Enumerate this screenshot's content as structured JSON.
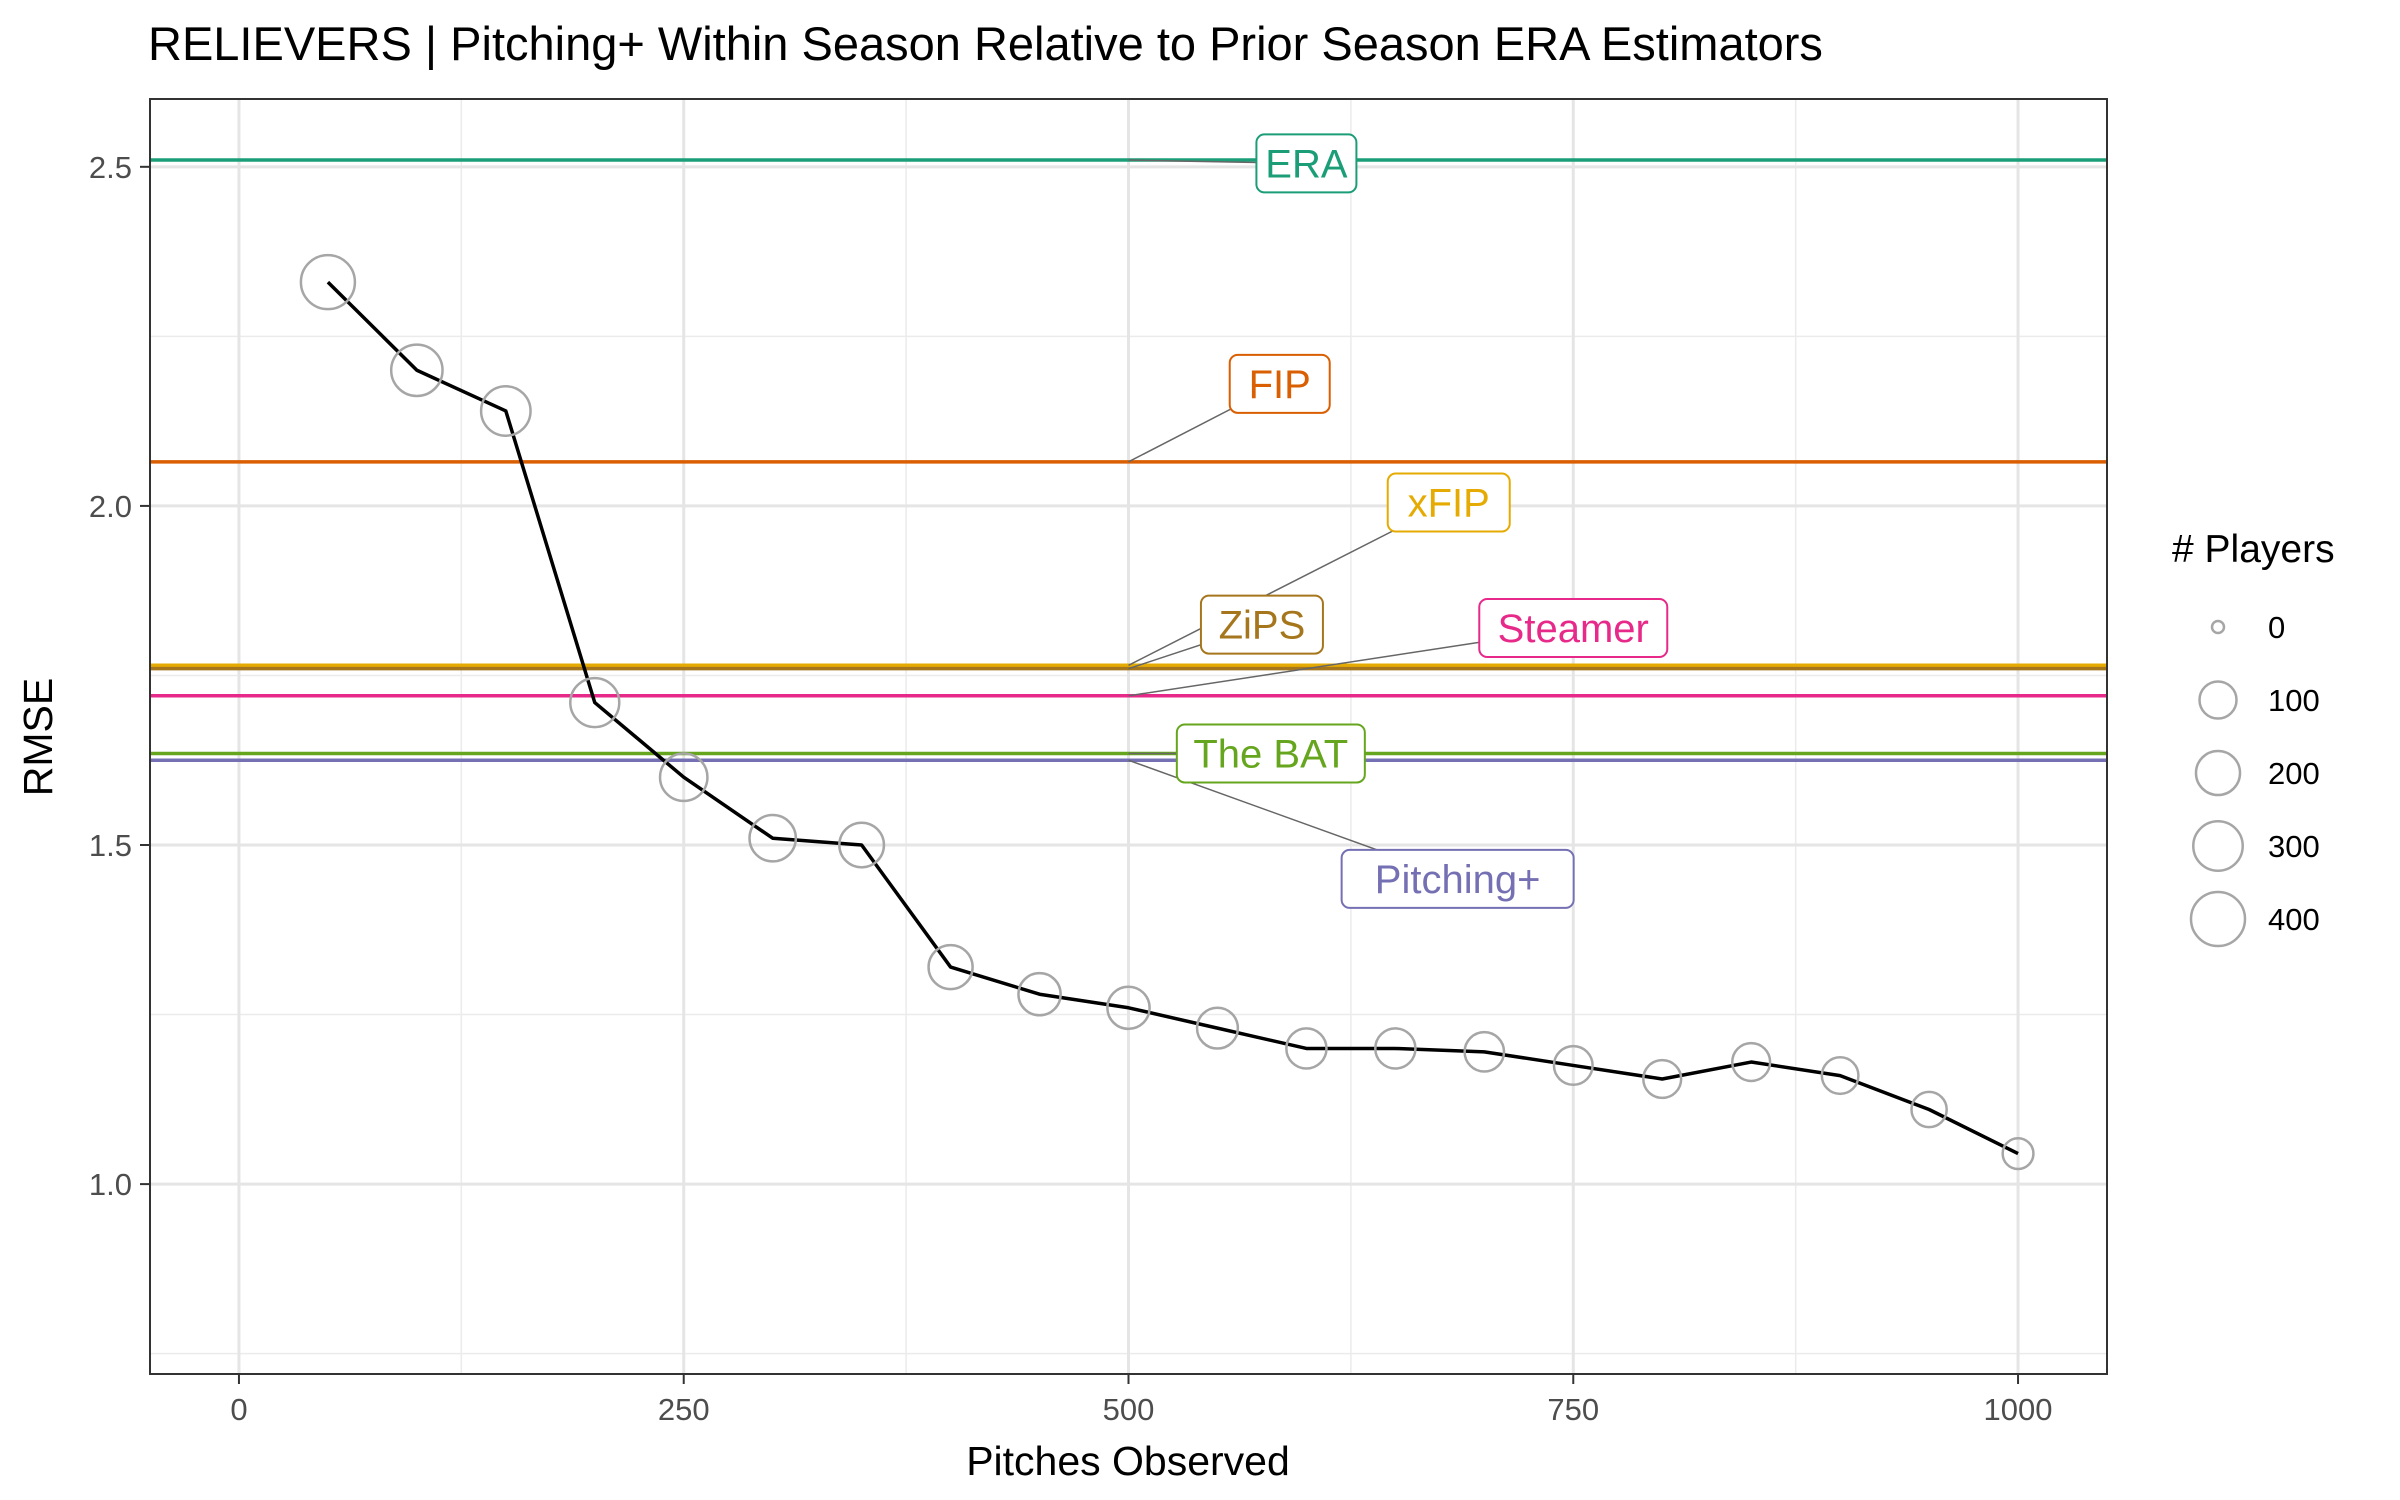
{
  "chart_data": {
    "type": "line",
    "title": "RELIEVERS | Pitching+ Within Season Relative to Prior Season ERA Estimators",
    "xlabel": "Pitches Observed",
    "ylabel": "RMSE",
    "xlim": [
      -50,
      1050
    ],
    "ylim": [
      0.72,
      2.6
    ],
    "x_ticks": [
      0,
      250,
      500,
      750,
      1000
    ],
    "x_tick_labels": [
      "0",
      "250",
      "500",
      "750",
      "1000"
    ],
    "y_ticks": [
      1.0,
      1.5,
      2.0,
      2.5
    ],
    "y_tick_labels": [
      "1.0",
      "1.5",
      "2.0",
      "2.5"
    ],
    "grid": true,
    "series": [
      {
        "x": [
          50,
          100,
          150,
          200,
          250,
          300,
          350,
          400,
          450,
          500,
          550,
          600,
          650,
          700,
          750,
          800,
          850,
          900,
          950,
          1000
        ],
        "y": [
          2.33,
          2.2,
          2.14,
          1.71,
          1.6,
          1.51,
          1.5,
          1.32,
          1.28,
          1.26,
          1.23,
          1.2,
          1.2,
          1.195,
          1.175,
          1.155,
          1.18,
          1.16,
          1.11,
          1.045
        ],
        "players": [
          400,
          340,
          300,
          290,
          260,
          240,
          210,
          200,
          170,
          170,
          150,
          140,
          140,
          130,
          120,
          110,
          110,
          95,
          80,
          40
        ],
        "color": "#000000"
      }
    ],
    "reference_lines": [
      {
        "name": "ERA",
        "y": 2.51,
        "color": "#1b9e77",
        "label_x": 600,
        "label_y": 2.505
      },
      {
        "name": "FIP",
        "y": 2.065,
        "color": "#d95f02",
        "label_x": 585,
        "label_y": 2.18
      },
      {
        "name": "xFIP",
        "y": 1.765,
        "color": "#e6ab02",
        "label_x": 680,
        "label_y": 2.005
      },
      {
        "name": "ZiPS",
        "y": 1.76,
        "color": "#a6761d",
        "label_x": 575,
        "label_y": 1.825
      },
      {
        "name": "Steamer",
        "y": 1.72,
        "color": "#e7298a",
        "label_x": 750,
        "label_y": 1.82
      },
      {
        "name": "The BAT",
        "y": 1.635,
        "color": "#66a61e",
        "label_x": 580,
        "label_y": 1.635
      },
      {
        "name": "Pitching+",
        "y": 1.625,
        "color": "#7570b3",
        "label_x": 685,
        "label_y": 1.45
      }
    ],
    "legend": {
      "title": "# Players",
      "placement": "right",
      "entries": [
        {
          "label": "0",
          "value": 0
        },
        {
          "label": "100",
          "value": 100
        },
        {
          "label": "200",
          "value": 200
        },
        {
          "label": "300",
          "value": 300
        },
        {
          "label": "400",
          "value": 400
        }
      ]
    }
  }
}
